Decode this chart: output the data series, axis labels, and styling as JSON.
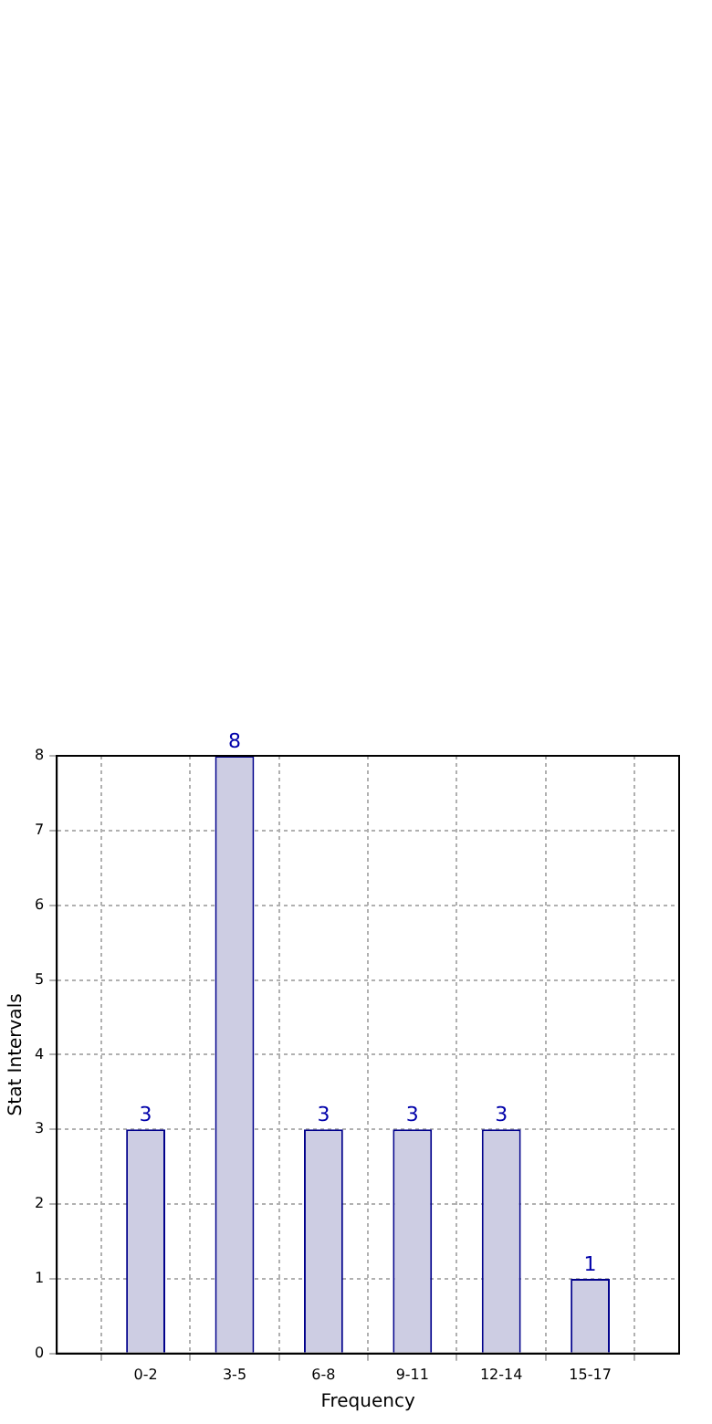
{
  "chart_data": {
    "type": "bar",
    "xlabel": "Frequency",
    "ylabel": "Stat Intervals",
    "categories": [
      "0-2",
      "3-5",
      "6-8",
      "9-11",
      "12-14",
      "15-17"
    ],
    "series": [
      {
        "color": "#cdcde3",
        "values": [
          3,
          8,
          3,
          3,
          3,
          1
        ]
      }
    ],
    "ylim": [
      0,
      8
    ],
    "yticks": [
      0,
      1,
      2,
      3,
      4,
      5,
      6,
      7,
      8
    ],
    "grid": true,
    "data_labels": true
  }
}
